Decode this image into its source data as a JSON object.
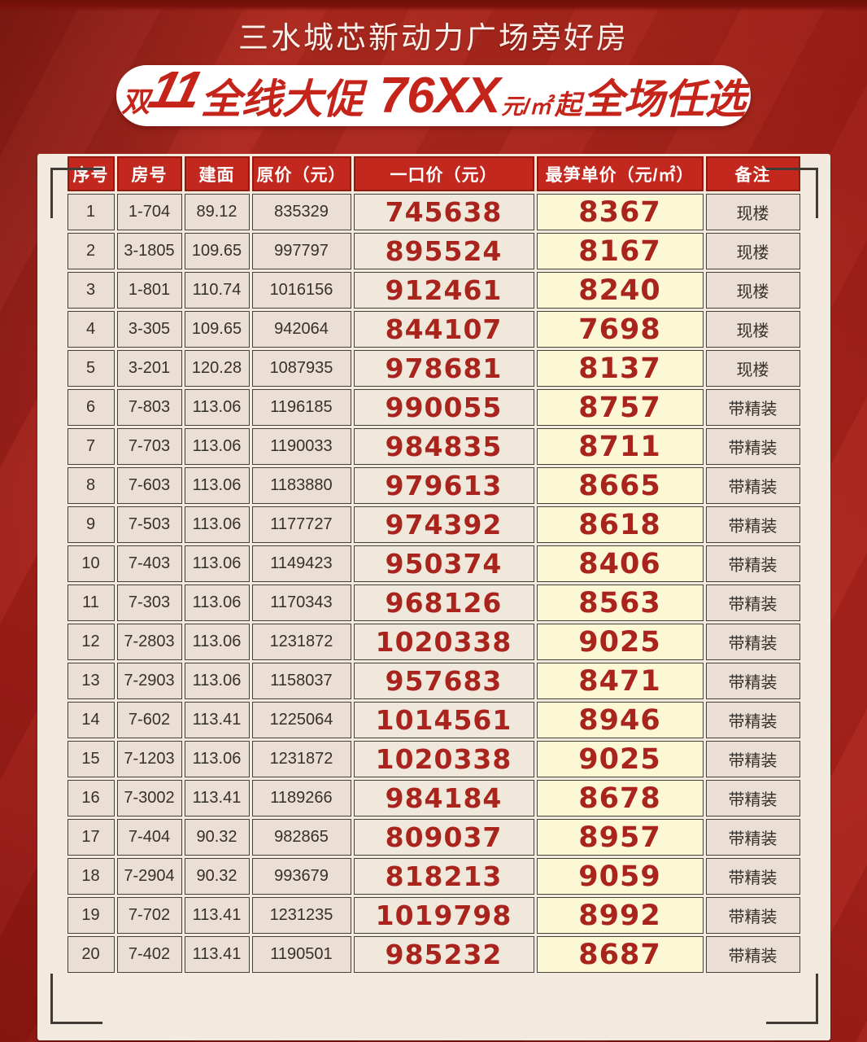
{
  "page": {
    "title": "三水城芯新动力广场旁好房"
  },
  "banner": {
    "double": "双",
    "eleven": "11",
    "promo": "全线大促",
    "price": "76XX",
    "price_unit": "元/㎡",
    "from": "起",
    "tail": "全场任选"
  },
  "colors": {
    "background_red": "#a8211a",
    "banner_text_red": "#c5241b",
    "panel_cream": "#f3eadf",
    "header_red": "#c2281d",
    "cell_pink": "#ebded5",
    "highlight_yellow": "#fcf8d5",
    "price_red": "#a9241c",
    "bracket_dark": "#413b36"
  },
  "table": {
    "columns": [
      {
        "key": "seq",
        "label": "序号"
      },
      {
        "key": "room",
        "label": "房号"
      },
      {
        "key": "area",
        "label": "建面"
      },
      {
        "key": "original",
        "label": "原价（元）"
      },
      {
        "key": "deal",
        "label": "一口价（元）"
      },
      {
        "key": "unit_price",
        "label": "最笋单价（元/㎡）"
      },
      {
        "key": "note",
        "label": "备注"
      }
    ],
    "rows": [
      {
        "seq": "1",
        "room": "1-704",
        "area": "89.12",
        "original": "835329",
        "deal": "745638",
        "unit_price": "8367",
        "note": "现楼"
      },
      {
        "seq": "2",
        "room": "3-1805",
        "area": "109.65",
        "original": "997797",
        "deal": "895524",
        "unit_price": "8167",
        "note": "现楼"
      },
      {
        "seq": "3",
        "room": "1-801",
        "area": "110.74",
        "original": "1016156",
        "deal": "912461",
        "unit_price": "8240",
        "note": "现楼"
      },
      {
        "seq": "4",
        "room": "3-305",
        "area": "109.65",
        "original": "942064",
        "deal": "844107",
        "unit_price": "7698",
        "note": "现楼"
      },
      {
        "seq": "5",
        "room": "3-201",
        "area": "120.28",
        "original": "1087935",
        "deal": "978681",
        "unit_price": "8137",
        "note": "现楼"
      },
      {
        "seq": "6",
        "room": "7-803",
        "area": "113.06",
        "original": "1196185",
        "deal": "990055",
        "unit_price": "8757",
        "note": "带精装"
      },
      {
        "seq": "7",
        "room": "7-703",
        "area": "113.06",
        "original": "1190033",
        "deal": "984835",
        "unit_price": "8711",
        "note": "带精装"
      },
      {
        "seq": "8",
        "room": "7-603",
        "area": "113.06",
        "original": "1183880",
        "deal": "979613",
        "unit_price": "8665",
        "note": "带精装"
      },
      {
        "seq": "9",
        "room": "7-503",
        "area": "113.06",
        "original": "1177727",
        "deal": "974392",
        "unit_price": "8618",
        "note": "带精装"
      },
      {
        "seq": "10",
        "room": "7-403",
        "area": "113.06",
        "original": "1149423",
        "deal": "950374",
        "unit_price": "8406",
        "note": "带精装"
      },
      {
        "seq": "11",
        "room": "7-303",
        "area": "113.06",
        "original": "1170343",
        "deal": "968126",
        "unit_price": "8563",
        "note": "带精装"
      },
      {
        "seq": "12",
        "room": "7-2803",
        "area": "113.06",
        "original": "1231872",
        "deal": "1020338",
        "unit_price": "9025",
        "note": "带精装"
      },
      {
        "seq": "13",
        "room": "7-2903",
        "area": "113.06",
        "original": "1158037",
        "deal": "957683",
        "unit_price": "8471",
        "note": "带精装"
      },
      {
        "seq": "14",
        "room": "7-602",
        "area": "113.41",
        "original": "1225064",
        "deal": "1014561",
        "unit_price": "8946",
        "note": "带精装"
      },
      {
        "seq": "15",
        "room": "7-1203",
        "area": "113.06",
        "original": "1231872",
        "deal": "1020338",
        "unit_price": "9025",
        "note": "带精装"
      },
      {
        "seq": "16",
        "room": "7-3002",
        "area": "113.41",
        "original": "1189266",
        "deal": "984184",
        "unit_price": "8678",
        "note": "带精装"
      },
      {
        "seq": "17",
        "room": "7-404",
        "area": "90.32",
        "original": "982865",
        "deal": "809037",
        "unit_price": "8957",
        "note": "带精装"
      },
      {
        "seq": "18",
        "room": "7-2904",
        "area": "90.32",
        "original": "993679",
        "deal": "818213",
        "unit_price": "9059",
        "note": "带精装"
      },
      {
        "seq": "19",
        "room": "7-702",
        "area": "113.41",
        "original": "1231235",
        "deal": "1019798",
        "unit_price": "8992",
        "note": "带精装"
      },
      {
        "seq": "20",
        "room": "7-402",
        "area": "113.41",
        "original": "1190501",
        "deal": "985232",
        "unit_price": "8687",
        "note": "带精装"
      }
    ]
  }
}
